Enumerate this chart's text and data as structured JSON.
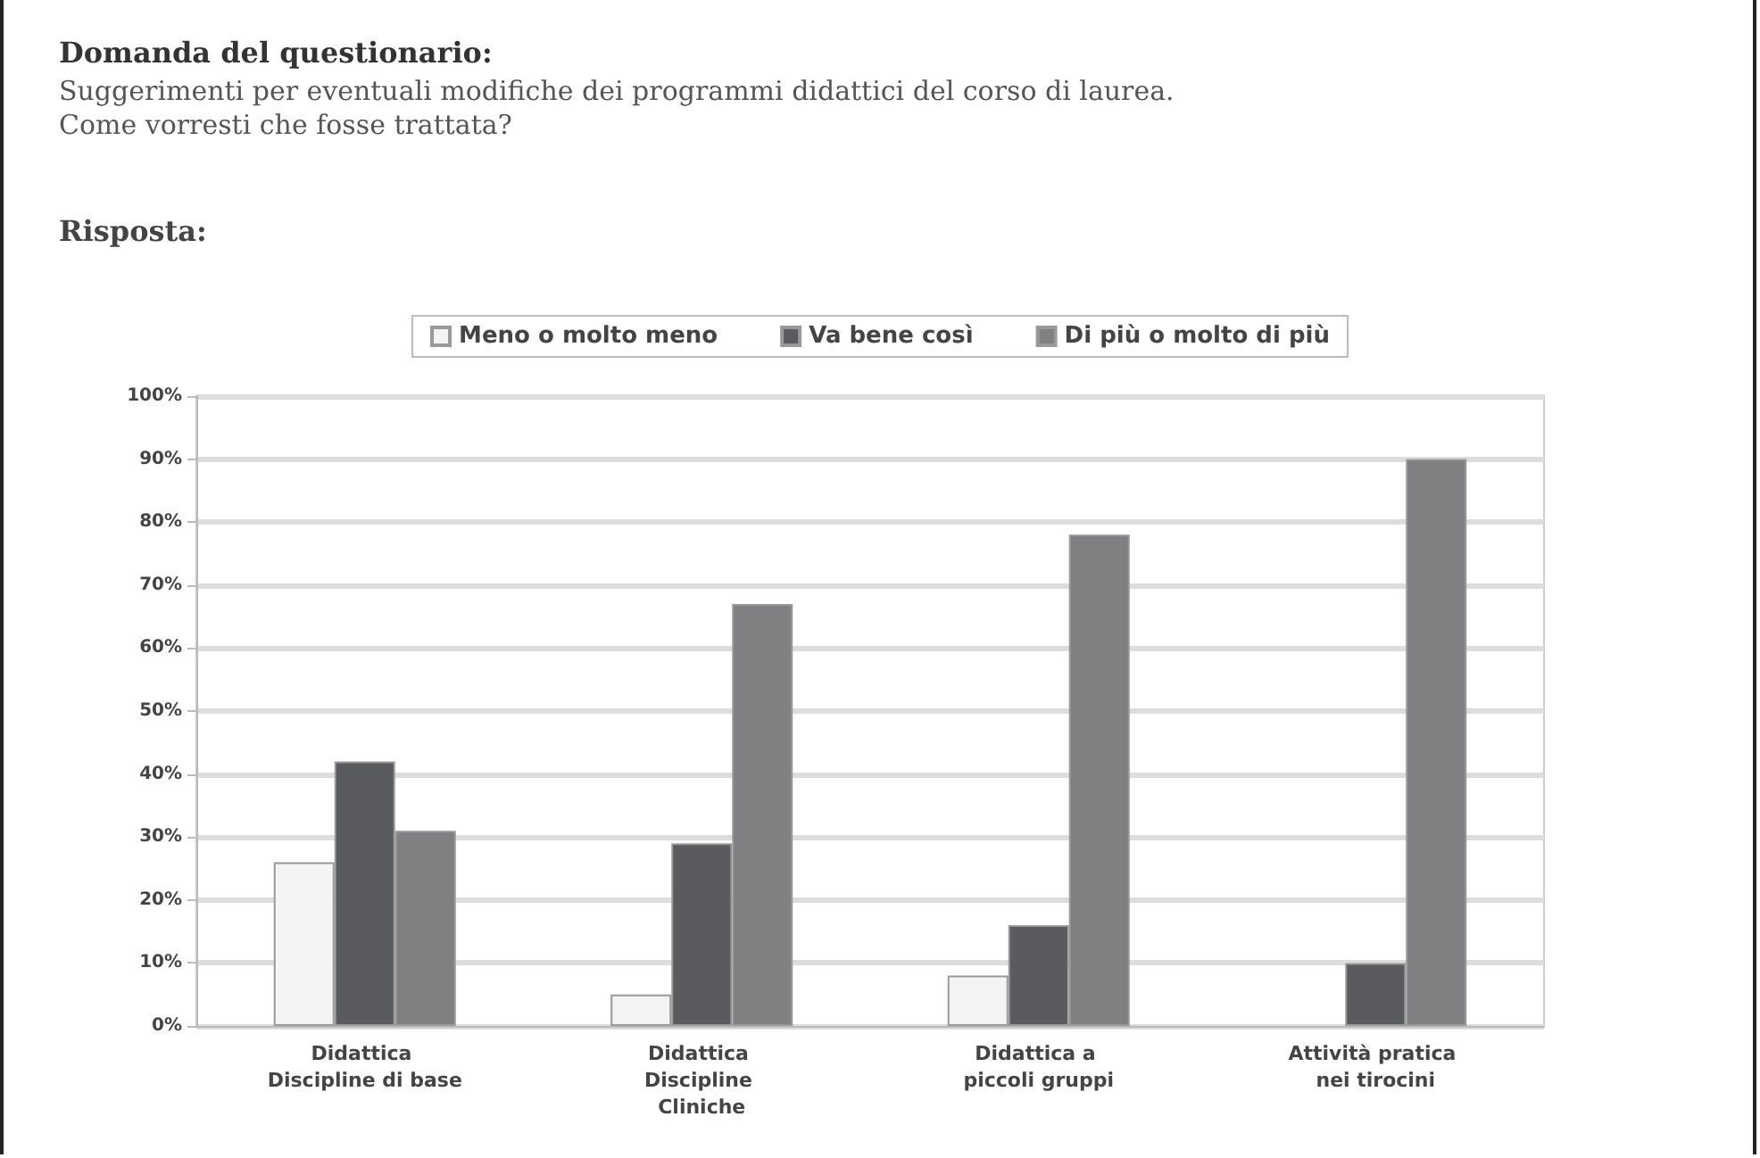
{
  "chart_data": {
    "type": "bar",
    "title": "Domanda del questionario:",
    "subtitle": "Suggerimenti per eventuali modifiche dei programmi didattici del corso di laurea.\nCome vorresti che fosse trattata?",
    "annotations": [
      "Risposta:"
    ],
    "categories": [
      "Didattica Discipline di base",
      "Didattica Discipline Cliniche",
      "Didattica a piccoli gruppi",
      "Attività pratica nei tirocini"
    ],
    "series": [
      {
        "name": "Meno o molto meno",
        "color": "#f4f4f4",
        "values": [
          26,
          5,
          8,
          0
        ]
      },
      {
        "name": "Va bene così",
        "color": "#5a5b5e",
        "values": [
          42,
          29,
          16,
          10
        ]
      },
      {
        "name": "Di più o molto di più",
        "color": "#808083",
        "values": [
          31,
          67,
          78,
          90
        ]
      }
    ],
    "ylim": [
      0,
      100
    ],
    "yticks": [
      {
        "value": 0,
        "label": "0%"
      },
      {
        "value": 10,
        "label": "10%"
      },
      {
        "value": 20,
        "label": "20%"
      },
      {
        "value": 30,
        "label": "30%"
      },
      {
        "value": 40,
        "label": "40%"
      },
      {
        "value": 50,
        "label": "50%"
      },
      {
        "value": 60,
        "label": "60%"
      },
      {
        "value": 70,
        "label": "70%"
      },
      {
        "value": 80,
        "label": "80%"
      },
      {
        "value": 90,
        "label": "90%"
      },
      {
        "value": 100,
        "label": "100%"
      }
    ],
    "grid": "y",
    "legend": "top"
  }
}
